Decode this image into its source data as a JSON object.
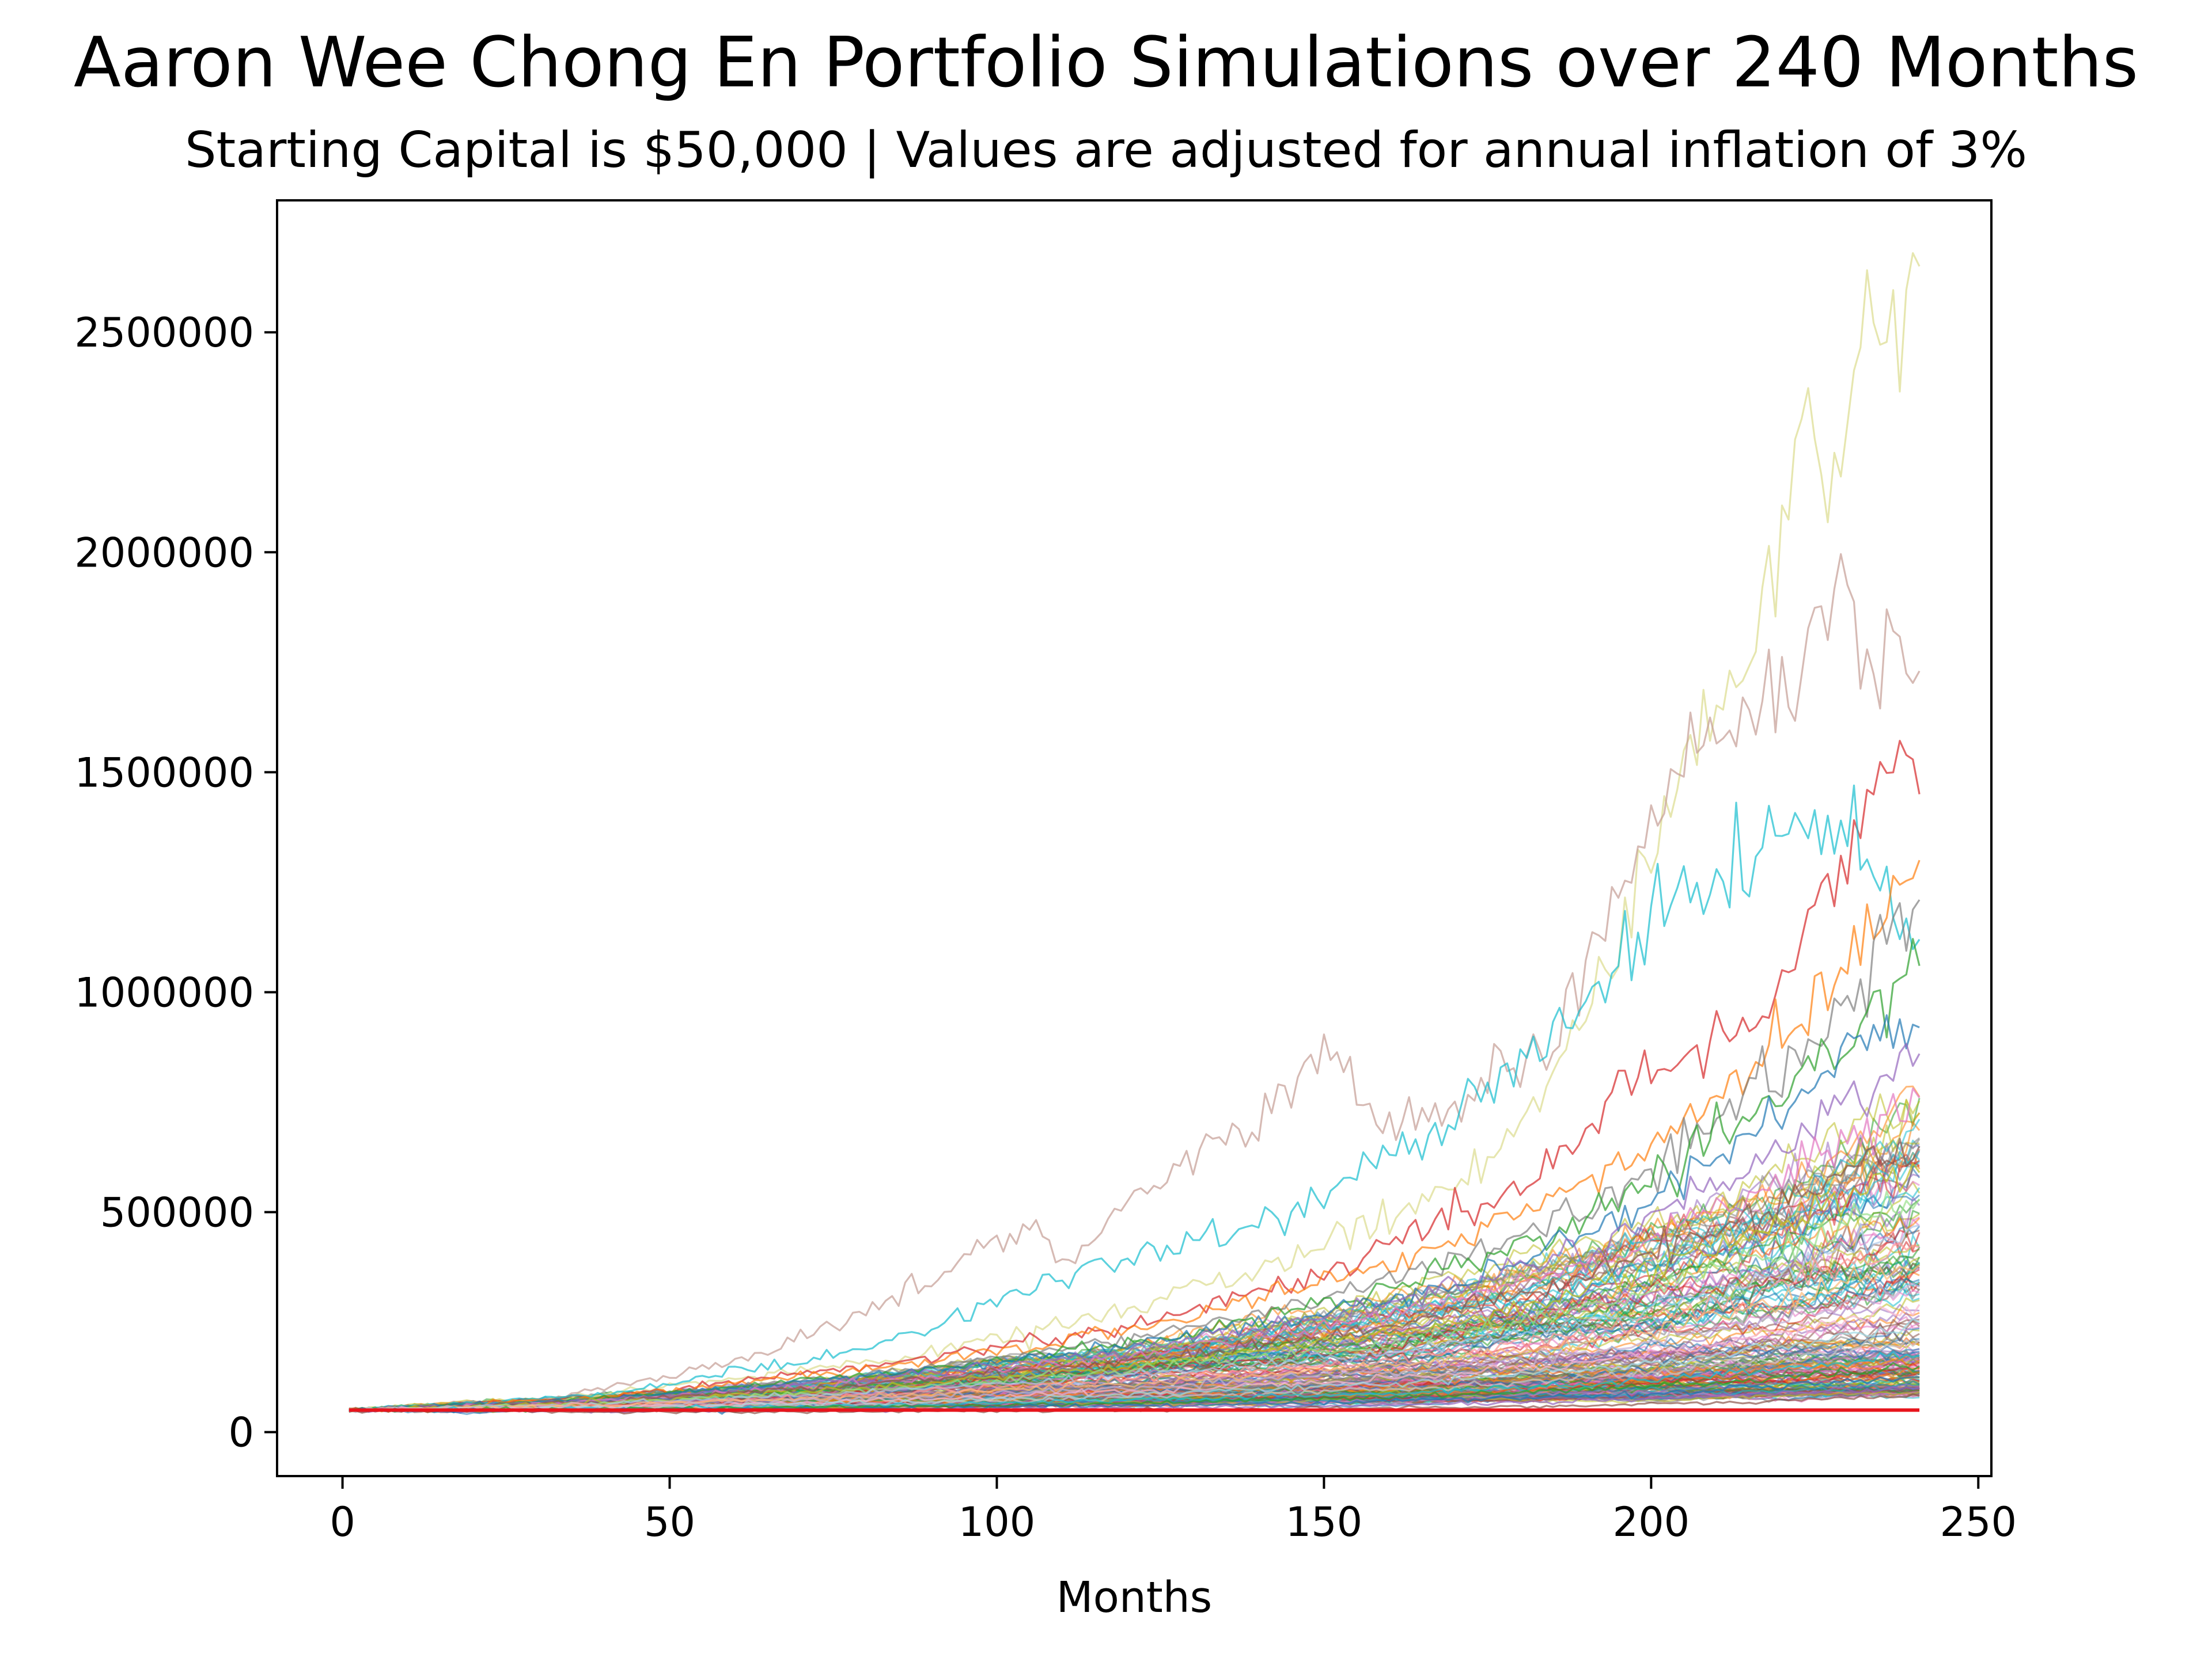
{
  "chart_data": {
    "type": "line",
    "title": "Aaron Wee Chong En Portfolio Simulations over 240 Months",
    "subtitle": "Starting Capital is $50,000 | Values are adjusted for annual inflation of 3%",
    "xlabel": "Months",
    "ylabel": "",
    "xlim": [
      -10,
      252
    ],
    "ylim": [
      -100000,
      2800000
    ],
    "xticks": [
      0,
      50,
      100,
      150,
      200,
      250
    ],
    "xtick_labels": [
      "0",
      "50",
      "100",
      "150",
      "200",
      "250"
    ],
    "yticks": [
      0,
      500000,
      1000000,
      1500000,
      2000000,
      2500000
    ],
    "ytick_labels": [
      "0",
      "500000",
      "1000000",
      "1500000",
      "2000000",
      "2500000"
    ],
    "grid": false,
    "legend": "none",
    "starting_capital": 50000,
    "baseline": {
      "name": "",
      "color": "#e8141c",
      "x": [
        1,
        241
      ],
      "values": [
        50000,
        50000
      ]
    },
    "simulation_count_visible": 200,
    "series": [
      {
        "color": "#dbdb8d",
        "x": [
          1,
          30,
          60,
          90,
          120,
          150,
          170,
          185,
          195,
          205,
          215,
          222,
          228,
          233,
          238,
          241
        ],
        "values": [
          50000,
          70000,
          120000,
          180000,
          280000,
          420000,
          560000,
          800000,
          1150000,
          1500000,
          1700000,
          2250000,
          2200000,
          2500000,
          2550000,
          2650000
        ]
      },
      {
        "color": "#c49c94",
        "x": [
          1,
          30,
          60,
          80,
          95,
          105,
          110,
          130,
          140,
          150,
          160,
          175,
          185,
          195,
          205,
          215,
          225,
          230,
          235,
          241
        ],
        "values": [
          50000,
          70000,
          160000,
          270000,
          400000,
          470000,
          380000,
          650000,
          700000,
          870000,
          680000,
          800000,
          880000,
          1250000,
          1550000,
          1600000,
          1800000,
          1930000,
          1700000,
          1730000
        ]
      },
      {
        "color": "#d62728",
        "x": [
          1,
          40,
          80,
          120,
          150,
          180,
          200,
          215,
          225,
          232,
          238,
          241
        ],
        "values": [
          50000,
          80000,
          150000,
          240000,
          360000,
          560000,
          820000,
          920000,
          1180000,
          1400000,
          1580000,
          1450000
        ]
      },
      {
        "color": "#17becf",
        "x": [
          1,
          40,
          80,
          110,
          140,
          170,
          190,
          200,
          210,
          220,
          228,
          235,
          241
        ],
        "values": [
          50000,
          85000,
          190000,
          350000,
          470000,
          700000,
          1000000,
          1150000,
          1250000,
          1380000,
          1400000,
          1250000,
          1120000
        ]
      },
      {
        "color": "#ff7f0e",
        "x": [
          1,
          40,
          80,
          120,
          160,
          190,
          210,
          225,
          235,
          241
        ],
        "values": [
          50000,
          80000,
          140000,
          230000,
          380000,
          560000,
          760000,
          980000,
          1180000,
          1300000
        ]
      },
      {
        "color": "#7f7f7f",
        "x": [
          1,
          40,
          80,
          120,
          160,
          190,
          210,
          225,
          235,
          241
        ],
        "values": [
          50000,
          75000,
          130000,
          210000,
          340000,
          500000,
          700000,
          880000,
          1100000,
          1210000
        ]
      },
      {
        "color": "#2ca02c",
        "x": [
          1,
          40,
          80,
          120,
          160,
          190,
          210,
          225,
          235,
          241
        ],
        "values": [
          50000,
          76000,
          130000,
          200000,
          320000,
          480000,
          650000,
          820000,
          1000000,
          1060000
        ]
      },
      {
        "color": "#1f77b4",
        "x": [
          1,
          40,
          80,
          120,
          160,
          190,
          210,
          225,
          235,
          241
        ],
        "values": [
          50000,
          74000,
          125000,
          195000,
          300000,
          450000,
          620000,
          780000,
          960000,
          920000
        ]
      },
      {
        "color": "#9467bd",
        "x": [
          1,
          40,
          80,
          120,
          160,
          190,
          210,
          225,
          235,
          241
        ],
        "values": [
          50000,
          72000,
          120000,
          185000,
          290000,
          420000,
          560000,
          700000,
          820000,
          860000
        ]
      },
      {
        "color": "#e377c2",
        "x": [
          1,
          40,
          80,
          120,
          160,
          190,
          210,
          225,
          235,
          241
        ],
        "values": [
          50000,
          70000,
          110000,
          170000,
          260000,
          380000,
          500000,
          620000,
          700000,
          760000
        ]
      },
      {
        "color": "#8c564b",
        "x": [
          1,
          40,
          80,
          120,
          160,
          190,
          210,
          225,
          235,
          241
        ],
        "values": [
          50000,
          70000,
          108000,
          160000,
          240000,
          350000,
          460000,
          560000,
          620000,
          650000
        ]
      },
      {
        "color": "#bcbd22",
        "x": [
          1,
          40,
          80,
          120,
          160,
          190,
          210,
          225,
          235,
          241
        ],
        "values": [
          50000,
          68000,
          100000,
          150000,
          220000,
          320000,
          420000,
          500000,
          560000,
          590000
        ]
      },
      {
        "color": "#98df8a",
        "x": [
          1,
          40,
          80,
          120,
          160,
          190,
          210,
          225,
          235,
          241
        ],
        "values": [
          50000,
          66000,
          95000,
          140000,
          200000,
          280000,
          370000,
          440000,
          500000,
          530000
        ]
      },
      {
        "color": "#aec7e8",
        "x": [
          1,
          40,
          80,
          120,
          160,
          190,
          210,
          225,
          235,
          241
        ],
        "values": [
          50000,
          64000,
          90000,
          130000,
          180000,
          250000,
          320000,
          390000,
          440000,
          470000
        ]
      },
      {
        "color": "#ff9896",
        "x": [
          1,
          40,
          80,
          120,
          160,
          190,
          210,
          225,
          235,
          241
        ],
        "values": [
          50000,
          62000,
          85000,
          120000,
          165000,
          220000,
          290000,
          350000,
          400000,
          420000
        ]
      },
      {
        "color": "#ffbb78",
        "x": [
          1,
          40,
          80,
          120,
          160,
          190,
          210,
          225,
          235,
          241
        ],
        "values": [
          50000,
          60000,
          80000,
          110000,
          150000,
          200000,
          260000,
          310000,
          360000,
          380000
        ]
      },
      {
        "color": "#c5b0d5",
        "x": [
          1,
          40,
          80,
          120,
          160,
          190,
          210,
          225,
          235,
          241
        ],
        "values": [
          50000,
          58000,
          75000,
          100000,
          135000,
          180000,
          230000,
          270000,
          310000,
          330000
        ]
      },
      {
        "color": "#f7b6d2",
        "x": [
          1,
          40,
          80,
          120,
          160,
          190,
          210,
          225,
          235,
          241
        ],
        "values": [
          50000,
          56000,
          70000,
          92000,
          120000,
          160000,
          200000,
          240000,
          270000,
          290000
        ]
      },
      {
        "color": "#9edae5",
        "x": [
          1,
          40,
          80,
          120,
          160,
          190,
          210,
          225,
          235,
          241
        ],
        "values": [
          50000,
          55000,
          66000,
          85000,
          110000,
          140000,
          175000,
          205000,
          230000,
          250000
        ]
      },
      {
        "color": "#c7c7c7",
        "x": [
          1,
          40,
          80,
          120,
          160,
          190,
          210,
          225,
          235,
          241
        ],
        "values": [
          50000,
          54000,
          62000,
          78000,
          98000,
          122000,
          150000,
          175000,
          195000,
          210000
        ]
      },
      {
        "color": "#17becf",
        "x": [
          1,
          40,
          80,
          120,
          160,
          190,
          210,
          225,
          235,
          241
        ],
        "values": [
          50000,
          53000,
          60000,
          72000,
          88000,
          108000,
          130000,
          150000,
          165000,
          175000
        ]
      },
      {
        "color": "#2ca02c",
        "x": [
          1,
          40,
          80,
          120,
          160,
          190,
          210,
          225,
          235,
          241
        ],
        "values": [
          50000,
          52000,
          57000,
          66000,
          80000,
          96000,
          112000,
          128000,
          140000,
          150000
        ]
      },
      {
        "color": "#1f77b4",
        "x": [
          1,
          40,
          80,
          120,
          160,
          190,
          210,
          225,
          235,
          241
        ],
        "values": [
          50000,
          50000,
          53000,
          60000,
          70000,
          82000,
          95000,
          108000,
          118000,
          125000
        ]
      },
      {
        "color": "#9467bd",
        "x": [
          1,
          40,
          80,
          120,
          160,
          190,
          210,
          225,
          235,
          241
        ],
        "values": [
          50000,
          48000,
          50000,
          55000,
          62000,
          70000,
          80000,
          90000,
          98000,
          100000
        ]
      },
      {
        "color": "#8c564b",
        "x": [
          1,
          40,
          80,
          120,
          160,
          190,
          210,
          225,
          235,
          241
        ],
        "values": [
          50000,
          46000,
          47000,
          50000,
          55000,
          60000,
          66000,
          74000,
          80000,
          82000
        ]
      }
    ]
  }
}
